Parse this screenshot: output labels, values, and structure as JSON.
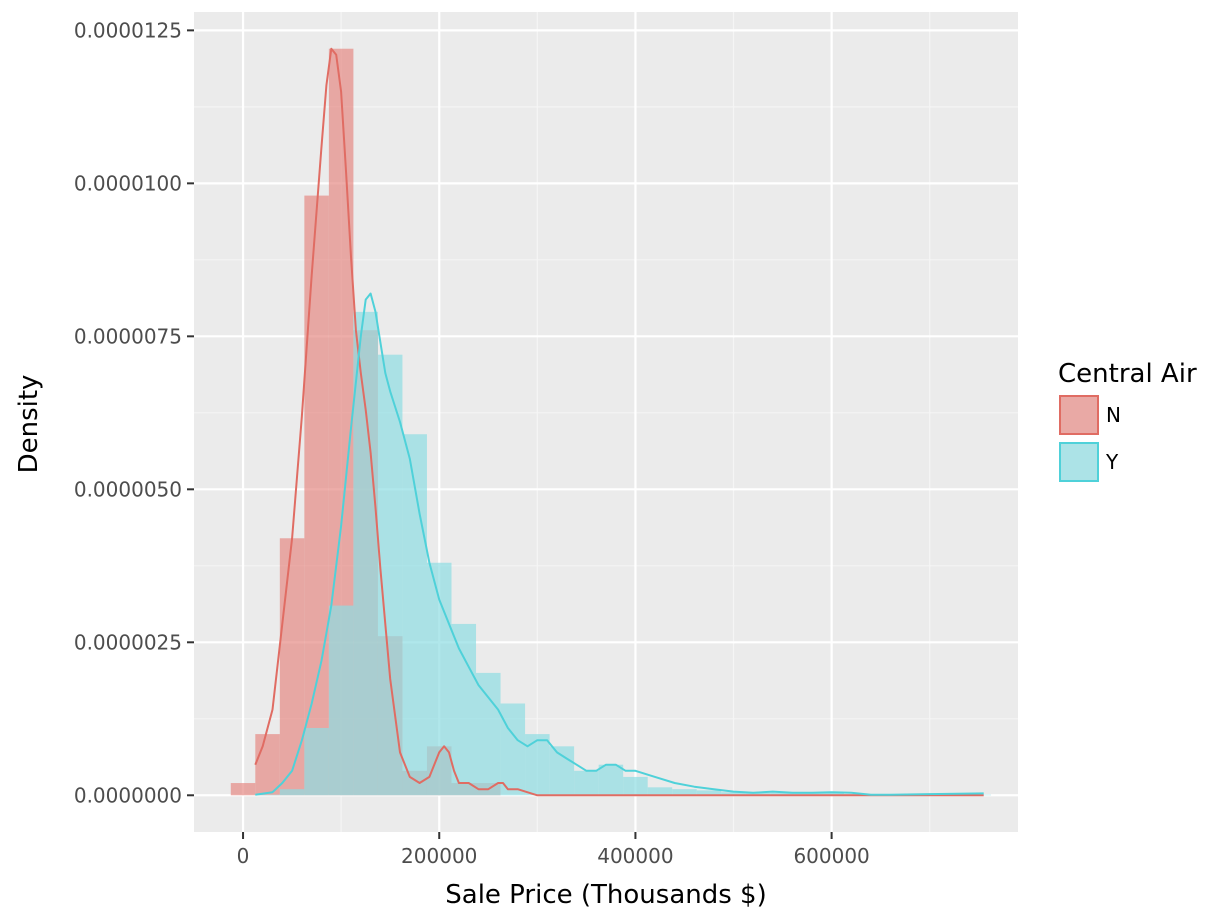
{
  "chart_data": {
    "type": "histogram+density",
    "title": "",
    "xlabel": "Sale Price (Thousands $)",
    "ylabel": "Density",
    "xlim": [
      -50000,
      790000
    ],
    "ylim": [
      -6e-07,
      1.28e-05
    ],
    "x_ticks": [
      0,
      200000,
      400000,
      600000
    ],
    "x_tick_labels": [
      "0",
      "200000",
      "400000",
      "600000"
    ],
    "y_ticks": [
      0,
      2.5e-06,
      5e-06,
      7.5e-06,
      1e-05,
      1.25e-05
    ],
    "y_tick_labels": [
      "0.0000000",
      "0.0000025",
      "0.0000050",
      "0.0000075",
      "0.0000100",
      "0.0000125"
    ],
    "grid": true,
    "legend": {
      "title": "Central Air",
      "position": "right"
    },
    "bin_width": 25000,
    "series": [
      {
        "name": "N",
        "color": "#E06C63",
        "fill": "#E68A84",
        "bin_starts": [
          -12500,
          12500,
          37500,
          62500,
          87500,
          112500,
          137500,
          162500,
          187500,
          212500,
          237500
        ],
        "bin_density": [
          2e-07,
          1e-06,
          4.2e-06,
          9.8e-06,
          1.22e-05,
          7.6e-06,
          2.6e-06,
          4e-07,
          8e-07,
          2e-07,
          2e-07
        ],
        "density_x": [
          12500,
          20000,
          30000,
          40000,
          50000,
          60000,
          70000,
          80000,
          85000,
          90000,
          95000,
          100000,
          105000,
          110000,
          115000,
          120000,
          125000,
          130000,
          135000,
          140000,
          150000,
          160000,
          170000,
          180000,
          190000,
          200000,
          205000,
          210000,
          215000,
          220000,
          225000,
          230000,
          240000,
          250000,
          260000,
          265000,
          270000,
          280000,
          300000,
          400000,
          500000,
          600000,
          755000
        ],
        "density_y": [
          5e-07,
          8e-07,
          1.4e-06,
          2.8e-06,
          4.2e-06,
          6.2e-06,
          8.5e-06,
          1.06e-05,
          1.16e-05,
          1.22e-05,
          1.21e-05,
          1.15e-05,
          1.02e-05,
          8.8e-06,
          7.6e-06,
          6.9e-06,
          6.3e-06,
          5.6e-06,
          4.7e-06,
          3.7e-06,
          1.9e-06,
          7e-07,
          3e-07,
          2e-07,
          3e-07,
          7e-07,
          8e-07,
          7e-07,
          4e-07,
          2e-07,
          2e-07,
          2e-07,
          1e-07,
          1e-07,
          2e-07,
          2e-07,
          1e-07,
          1e-07,
          0.0,
          0.0,
          0.0,
          0.0,
          0.0
        ]
      },
      {
        "name": "Y",
        "color": "#4FD1D9",
        "fill": "#8EDDE3",
        "bin_starts": [
          12500,
          37500,
          62500,
          87500,
          112500,
          137500,
          162500,
          187500,
          212500,
          237500,
          262500,
          287500,
          312500,
          337500,
          362500,
          387500,
          412500,
          437500,
          462500,
          487500,
          512500,
          537500,
          562500,
          587500,
          612500,
          637500,
          662500,
          687500,
          712500,
          737500
        ],
        "bin_density": [
          1e-08,
          1e-07,
          1.1e-06,
          3.1e-06,
          7.9e-06,
          7.2e-06,
          5.9e-06,
          3.8e-06,
          2.8e-06,
          2e-06,
          1.5e-06,
          1e-06,
          8e-07,
          4e-07,
          5e-07,
          3e-07,
          1.3e-07,
          1e-07,
          8e-08,
          5e-08,
          4e-08,
          4e-08,
          3e-08,
          4e-08,
          2e-08,
          1e-08,
          1e-08,
          1e-08,
          1e-08,
          1e-08
        ],
        "density_x": [
          12500,
          30000,
          40000,
          50000,
          60000,
          70000,
          80000,
          90000,
          100000,
          110000,
          120000,
          125000,
          130000,
          135000,
          140000,
          145000,
          150000,
          160000,
          165000,
          170000,
          180000,
          190000,
          200000,
          210000,
          220000,
          230000,
          240000,
          250000,
          260000,
          270000,
          280000,
          290000,
          300000,
          310000,
          320000,
          330000,
          340000,
          350000,
          360000,
          370000,
          380000,
          390000,
          400000,
          420000,
          440000,
          460000,
          480000,
          500000,
          520000,
          540000,
          560000,
          580000,
          600000,
          620000,
          640000,
          660000,
          700000,
          755000
        ],
        "density_y": [
          1e-08,
          5e-08,
          2e-07,
          4e-07,
          9e-07,
          1.5e-06,
          2.2e-06,
          3.1e-06,
          4.4e-06,
          6e-06,
          7.5e-06,
          8.1e-06,
          8.2e-06,
          7.9e-06,
          7.4e-06,
          6.9e-06,
          6.6e-06,
          6.1e-06,
          5.8e-06,
          5.5e-06,
          4.6e-06,
          3.8e-06,
          3.2e-06,
          2.8e-06,
          2.4e-06,
          2.1e-06,
          1.8e-06,
          1.6e-06,
          1.4e-06,
          1.1e-06,
          9e-07,
          8e-07,
          9e-07,
          9e-07,
          7e-07,
          6e-07,
          5e-07,
          4e-07,
          4e-07,
          5e-07,
          5e-07,
          4e-07,
          4e-07,
          3e-07,
          2e-07,
          1.4e-07,
          1e-07,
          6e-08,
          4e-08,
          6e-08,
          4e-08,
          4e-08,
          5e-08,
          4e-08,
          1e-08,
          1e-08,
          2e-08,
          3e-08
        ]
      }
    ]
  }
}
